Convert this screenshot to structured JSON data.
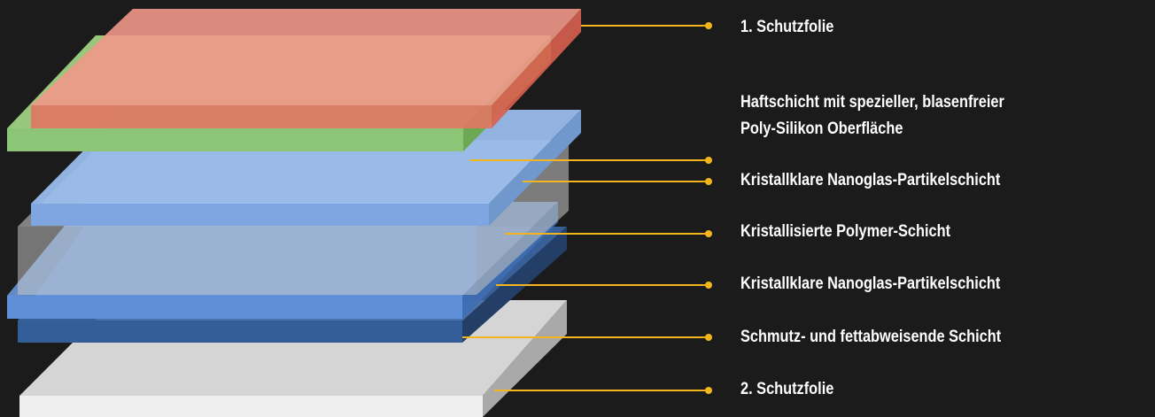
{
  "colors": {
    "background": "#1c1b1b",
    "leader_line": "#f2b51d",
    "label_text": "#ffffff"
  },
  "layers": [
    {
      "id": "schutzfolie-1",
      "label_lines": [
        "1. Schutzfolie"
      ],
      "color": "#e8806a"
    },
    {
      "id": "haftschicht",
      "label_lines": [
        "Haftschicht mit spezieller, blasenfreier",
        "Poly-Silikon Oberfläche"
      ],
      "color": "#98cf7e"
    },
    {
      "id": "nanoglas-1",
      "label_lines": [
        "Kristallklare Nanoglas-Partikelschicht"
      ],
      "color": "#8fb8ec"
    },
    {
      "id": "polymer",
      "label_lines": [
        "Kristallisierte Polymer-Schicht"
      ],
      "color": "#c9c9c9"
    },
    {
      "id": "nanoglas-2",
      "label_lines": [
        "Kristallklare Nanoglas-Partikelschicht"
      ],
      "color": "#5c8fd6"
    },
    {
      "id": "schmutz",
      "label_lines": [
        "Schmutz- und fettabweisende Schicht"
      ],
      "color": "#31588f"
    },
    {
      "id": "schutzfolie-2",
      "label_lines": [
        "2. Schutzfolie"
      ],
      "color": "#e2e2e2"
    }
  ]
}
